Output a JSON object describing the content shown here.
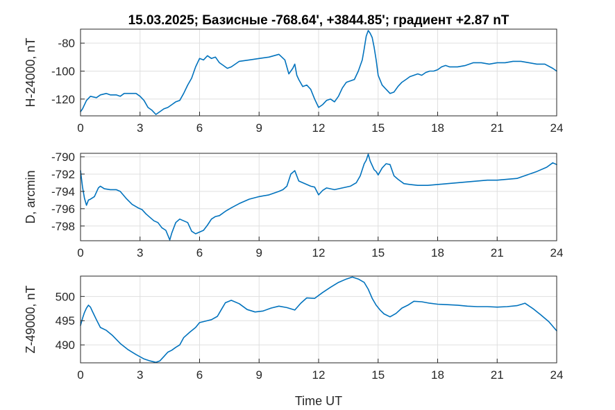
{
  "title": "15.03.2025;  Базисные  -768.64', +3844.85'; градиент +2.87 nT",
  "xlabel": "Time UT",
  "colors": {
    "series": "#0072BD",
    "axes": "#262626",
    "grid": "#dfdfdf"
  },
  "chart_data": [
    {
      "type": "line",
      "ylabel": "H-24000, nT",
      "xlim": [
        0,
        24
      ],
      "ylim": [
        -132,
        -70
      ],
      "xticks": [
        0,
        3,
        6,
        9,
        12,
        15,
        18,
        21,
        24
      ],
      "yticks": [
        -120,
        -100,
        -80
      ],
      "grid": true,
      "series": [
        {
          "x": [
            0,
            0.1,
            0.3,
            0.5,
            0.8,
            1.0,
            1.3,
            1.5,
            1.8,
            2.0,
            2.2,
            2.5,
            2.8,
            3.0,
            3.2,
            3.4,
            3.6,
            3.8,
            4.0,
            4.2,
            4.4,
            4.6,
            4.8,
            5.0,
            5.2,
            5.4,
            5.6,
            5.8,
            6.0,
            6.2,
            6.4,
            6.6,
            6.8,
            7.0,
            7.2,
            7.4,
            7.6,
            7.8,
            8.0,
            8.5,
            9.0,
            9.5,
            10.0,
            10.3,
            10.5,
            10.7,
            10.8,
            10.9,
            11.0,
            11.2,
            11.4,
            11.6,
            11.8,
            12.0,
            12.2,
            12.4,
            12.6,
            12.8,
            13.0,
            13.2,
            13.4,
            13.6,
            13.8,
            14.0,
            14.2,
            14.3,
            14.4,
            14.5,
            14.6,
            14.7,
            14.8,
            14.9,
            15.0,
            15.2,
            15.4,
            15.6,
            15.8,
            16.0,
            16.2,
            16.4,
            16.6,
            16.8,
            17.0,
            17.2,
            17.4,
            17.6,
            17.8,
            18.0,
            18.2,
            18.4,
            18.6,
            18.8,
            19.0,
            19.4,
            19.8,
            20.2,
            20.6,
            21.0,
            21.4,
            21.8,
            22.2,
            22.6,
            23.0,
            23.4,
            23.8,
            24.0
          ],
          "values": [
            -129,
            -127,
            -121,
            -118,
            -119,
            -117,
            -116,
            -117,
            -117,
            -118,
            -116,
            -116,
            -116,
            -118,
            -121,
            -126,
            -128,
            -131,
            -129,
            -127,
            -126,
            -124,
            -122,
            -121,
            -116,
            -110,
            -105,
            -97,
            -91,
            -92,
            -89,
            -91,
            -90,
            -94,
            -96,
            -98,
            -97,
            -95,
            -93,
            -92,
            -91,
            -90,
            -88,
            -92,
            -102,
            -98,
            -95,
            -103,
            -106,
            -111,
            -110,
            -113,
            -120,
            -126,
            -124,
            -121,
            -120,
            -122,
            -118,
            -112,
            -108,
            -107,
            -106,
            -100,
            -92,
            -84,
            -75,
            -71,
            -73,
            -76,
            -83,
            -92,
            -103,
            -110,
            -113,
            -116,
            -115,
            -111,
            -108,
            -106,
            -104,
            -103,
            -102,
            -103,
            -101,
            -100,
            -100,
            -99,
            -97,
            -96,
            -97,
            -97,
            -97,
            -96,
            -94,
            -94,
            -95,
            -94,
            -94,
            -93,
            -93,
            -94,
            -95,
            -95,
            -98,
            -100
          ]
        }
      ]
    },
    {
      "type": "line",
      "ylabel": "D, arcmin",
      "xlim": [
        0,
        24
      ],
      "ylim": [
        -799.7,
        -789.6
      ],
      "xticks": [
        0,
        3,
        6,
        9,
        12,
        15,
        18,
        21,
        24
      ],
      "yticks": [
        -798,
        -796,
        -794,
        -792,
        -790
      ],
      "grid": true,
      "series": [
        {
          "x": [
            0,
            0.1,
            0.2,
            0.3,
            0.4,
            0.5,
            0.7,
            0.9,
            1.0,
            1.2,
            1.5,
            1.8,
            2.0,
            2.3,
            2.6,
            2.9,
            3.1,
            3.3,
            3.5,
            3.7,
            3.9,
            4.1,
            4.3,
            4.5,
            4.6,
            4.8,
            5.0,
            5.2,
            5.4,
            5.6,
            5.8,
            6.0,
            6.2,
            6.4,
            6.6,
            6.8,
            7.0,
            7.3,
            7.6,
            8.0,
            8.5,
            9.0,
            9.5,
            10.0,
            10.2,
            10.4,
            10.6,
            10.8,
            11.0,
            11.2,
            11.4,
            11.6,
            11.8,
            12.0,
            12.2,
            12.4,
            12.8,
            13.2,
            13.6,
            13.9,
            14.1,
            14.3,
            14.4,
            14.5,
            14.6,
            14.7,
            14.8,
            14.9,
            15.0,
            15.2,
            15.4,
            15.6,
            15.8,
            16.0,
            16.3,
            16.6,
            17.0,
            17.5,
            18.0,
            18.5,
            19.0,
            19.5,
            20.0,
            20.5,
            21.0,
            21.5,
            22.0,
            22.5,
            23.0,
            23.5,
            23.8,
            24.0
          ],
          "values": [
            -791.6,
            -793.5,
            -794.8,
            -795.6,
            -795.0,
            -794.9,
            -794.6,
            -793.6,
            -793.4,
            -793.7,
            -793.8,
            -793.8,
            -794.0,
            -794.8,
            -795.5,
            -795.9,
            -796.1,
            -796.6,
            -797.0,
            -797.4,
            -797.6,
            -798.2,
            -798.5,
            -799.6,
            -798.8,
            -797.6,
            -797.2,
            -797.4,
            -797.6,
            -798.6,
            -798.9,
            -798.7,
            -798.5,
            -797.9,
            -797.2,
            -796.9,
            -796.8,
            -796.3,
            -795.9,
            -795.4,
            -794.9,
            -794.6,
            -794.4,
            -794.0,
            -793.8,
            -793.4,
            -792.0,
            -791.6,
            -792.8,
            -793.0,
            -793.2,
            -793.4,
            -793.5,
            -794.4,
            -793.9,
            -793.6,
            -793.8,
            -793.6,
            -793.4,
            -793.0,
            -792.2,
            -790.8,
            -790.4,
            -789.7,
            -790.5,
            -791.0,
            -791.5,
            -791.7,
            -792.1,
            -791.3,
            -790.8,
            -790.9,
            -792.2,
            -792.6,
            -793.1,
            -793.2,
            -793.3,
            -793.3,
            -793.2,
            -793.1,
            -793.0,
            -792.9,
            -792.8,
            -792.7,
            -792.7,
            -792.6,
            -792.5,
            -792.1,
            -791.7,
            -791.2,
            -790.7,
            -790.9
          ]
        }
      ]
    },
    {
      "type": "line",
      "ylabel": "Z-49000, nT",
      "xlim": [
        0,
        24
      ],
      "ylim": [
        486.3,
        504.2
      ],
      "xticks": [
        0,
        3,
        6,
        9,
        12,
        15,
        18,
        21,
        24
      ],
      "yticks": [
        490,
        495,
        500
      ],
      "grid": true,
      "series": [
        {
          "x": [
            0,
            0.1,
            0.2,
            0.3,
            0.4,
            0.5,
            0.6,
            0.8,
            1.0,
            1.3,
            1.6,
            2.0,
            2.4,
            2.8,
            3.2,
            3.5,
            3.8,
            4.0,
            4.2,
            4.4,
            4.6,
            4.8,
            5.0,
            5.2,
            5.5,
            5.8,
            6.0,
            6.3,
            6.6,
            6.9,
            7.1,
            7.3,
            7.6,
            8.0,
            8.4,
            8.8,
            9.2,
            9.6,
            10.0,
            10.4,
            10.8,
            11.1,
            11.4,
            11.8,
            12.2,
            12.6,
            13.0,
            13.4,
            13.7,
            14.0,
            14.3,
            14.5,
            14.7,
            14.9,
            15.1,
            15.3,
            15.6,
            15.9,
            16.2,
            16.5,
            16.8,
            17.2,
            17.6,
            18.0,
            18.5,
            19.0,
            19.5,
            20.0,
            20.5,
            21.0,
            21.5,
            22.0,
            22.4,
            22.8,
            23.2,
            23.6,
            24.0
          ],
          "values": [
            494.0,
            495.5,
            496.7,
            497.6,
            498.2,
            497.8,
            496.9,
            495.2,
            493.6,
            493.0,
            492.0,
            490.3,
            489.0,
            488.0,
            487.1,
            486.7,
            486.4,
            486.7,
            487.6,
            488.5,
            488.9,
            489.5,
            490.0,
            491.5,
            492.6,
            493.6,
            494.6,
            494.9,
            495.2,
            495.9,
            497.3,
            498.7,
            499.2,
            498.5,
            497.3,
            496.8,
            497.0,
            497.6,
            498.0,
            497.7,
            497.2,
            498.6,
            499.7,
            499.6,
            500.8,
            501.9,
            502.9,
            503.6,
            504.0,
            503.6,
            502.9,
            501.5,
            499.6,
            498.2,
            497.2,
            496.4,
            495.8,
            496.5,
            497.6,
            498.2,
            499.0,
            498.9,
            498.6,
            498.4,
            498.3,
            498.2,
            498.0,
            497.9,
            497.9,
            497.8,
            497.9,
            498.1,
            498.6,
            497.5,
            496.2,
            494.8,
            492.9
          ]
        }
      ]
    }
  ]
}
